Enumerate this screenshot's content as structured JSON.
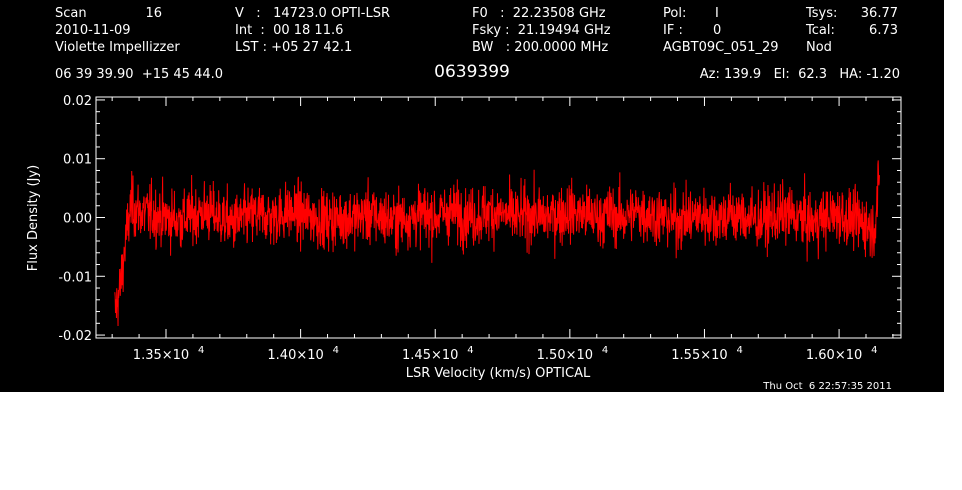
{
  "header": {
    "col1": {
      "scan_label": "Scan",
      "scan_value": "16",
      "date": "2010-11-09",
      "observer": "Violette Impellizzer"
    },
    "col2": {
      "v_line": "V   :   14723.0 OPTI-LSR",
      "int_line": "Int  :  00 18 11.6",
      "lst_line": "LST : +05 27 42.1"
    },
    "col3": {
      "f0_line": "F0   :  22.23508 GHz",
      "fsky_line": "Fsky :  21.19494 GHz",
      "bw_line": "BW   : 200.0000 MHz"
    },
    "col4": {
      "pol_label": "Pol:",
      "pol_value": "I",
      "if_label": "IF :",
      "if_value": "0",
      "project": "AGBT09C_051_29"
    },
    "col5": {
      "tsys_label": "Tsys:",
      "tsys_value": "36.77",
      "tcal_label": "Tcal:",
      "tcal_value": "6.73",
      "mode": "Nod"
    },
    "coords": "06 39 39.90  +15 45 44.0",
    "source": "0639399",
    "azelha": "Az: 139.9   El:  62.3   HA: -1.20"
  },
  "timestamp": "Thu Oct  6 22:57:35 2011",
  "colors": {
    "background": "#000000",
    "axes": "#ffffff",
    "trace": "#ff0000"
  },
  "chart_data": {
    "type": "line",
    "title": "",
    "xlabel": "LSR Velocity (km/s) OPTICAL",
    "ylabel": "Flux Density (Jy)",
    "xlim": [
      13240,
      16230
    ],
    "ylim": [
      -0.0205,
      0.0205
    ],
    "x_ticks": [
      {
        "value": 13500,
        "mantissa": "1.35×10",
        "exp": "4"
      },
      {
        "value": 14000,
        "mantissa": "1.40×10",
        "exp": "4"
      },
      {
        "value": 14500,
        "mantissa": "1.45×10",
        "exp": "4"
      },
      {
        "value": 15000,
        "mantissa": "1.50×10",
        "exp": "4"
      },
      {
        "value": 15500,
        "mantissa": "1.55×10",
        "exp": "4"
      },
      {
        "value": 16000,
        "mantissa": "1.60×10",
        "exp": "4"
      }
    ],
    "y_ticks": [
      {
        "value": -0.02,
        "label": "-0.02"
      },
      {
        "value": -0.01,
        "label": "-0.01"
      },
      {
        "value": 0.0,
        "label": "0.00"
      },
      {
        "value": 0.01,
        "label": "0.01"
      },
      {
        "value": 0.02,
        "label": "0.02"
      }
    ],
    "grid": false,
    "series": [
      {
        "color": "#ff0000",
        "x": [
          13310,
          13330,
          13350,
          13370,
          13400,
          13450,
          13500,
          13550,
          13600,
          13650,
          13700,
          13750,
          13800,
          13850,
          13900,
          13950,
          14000,
          14050,
          14100,
          14150,
          14200,
          14250,
          14300,
          14350,
          14400,
          14450,
          14500,
          14550,
          14600,
          14650,
          14700,
          14750,
          14800,
          14850,
          14900,
          14950,
          15000,
          15050,
          15100,
          15150,
          15200,
          15250,
          15300,
          15350,
          15400,
          15450,
          15500,
          15550,
          15600,
          15650,
          15700,
          15750,
          15800,
          15850,
          15900,
          15950,
          16000,
          16050,
          16100,
          16130,
          16150
        ],
        "y": [
          -0.016,
          -0.012,
          -0.004,
          0.002,
          0.001,
          0.0005,
          0.0,
          -0.0005,
          0.0005,
          0.001,
          0.0,
          -0.001,
          0.0,
          0.0005,
          0.0,
          0.001,
          0.0005,
          0.0,
          -0.0005,
          0.0,
          0.0,
          0.0005,
          0.0,
          -0.0005,
          0.0,
          0.0005,
          0.0,
          0.001,
          0.0005,
          0.0,
          0.001,
          0.0005,
          0.0,
          0.0005,
          0.0,
          0.0005,
          0.001,
          0.0005,
          0.0,
          0.0005,
          0.0,
          0.001,
          0.0005,
          0.0,
          -0.0005,
          0.0,
          0.0005,
          0.0,
          0.0005,
          0.0,
          -0.0005,
          0.0,
          0.0005,
          0.0,
          -0.001,
          0.0,
          0.0005,
          -0.0005,
          -0.001,
          -0.002,
          0.006
        ],
        "noise_rms": 0.0035
      }
    ]
  }
}
